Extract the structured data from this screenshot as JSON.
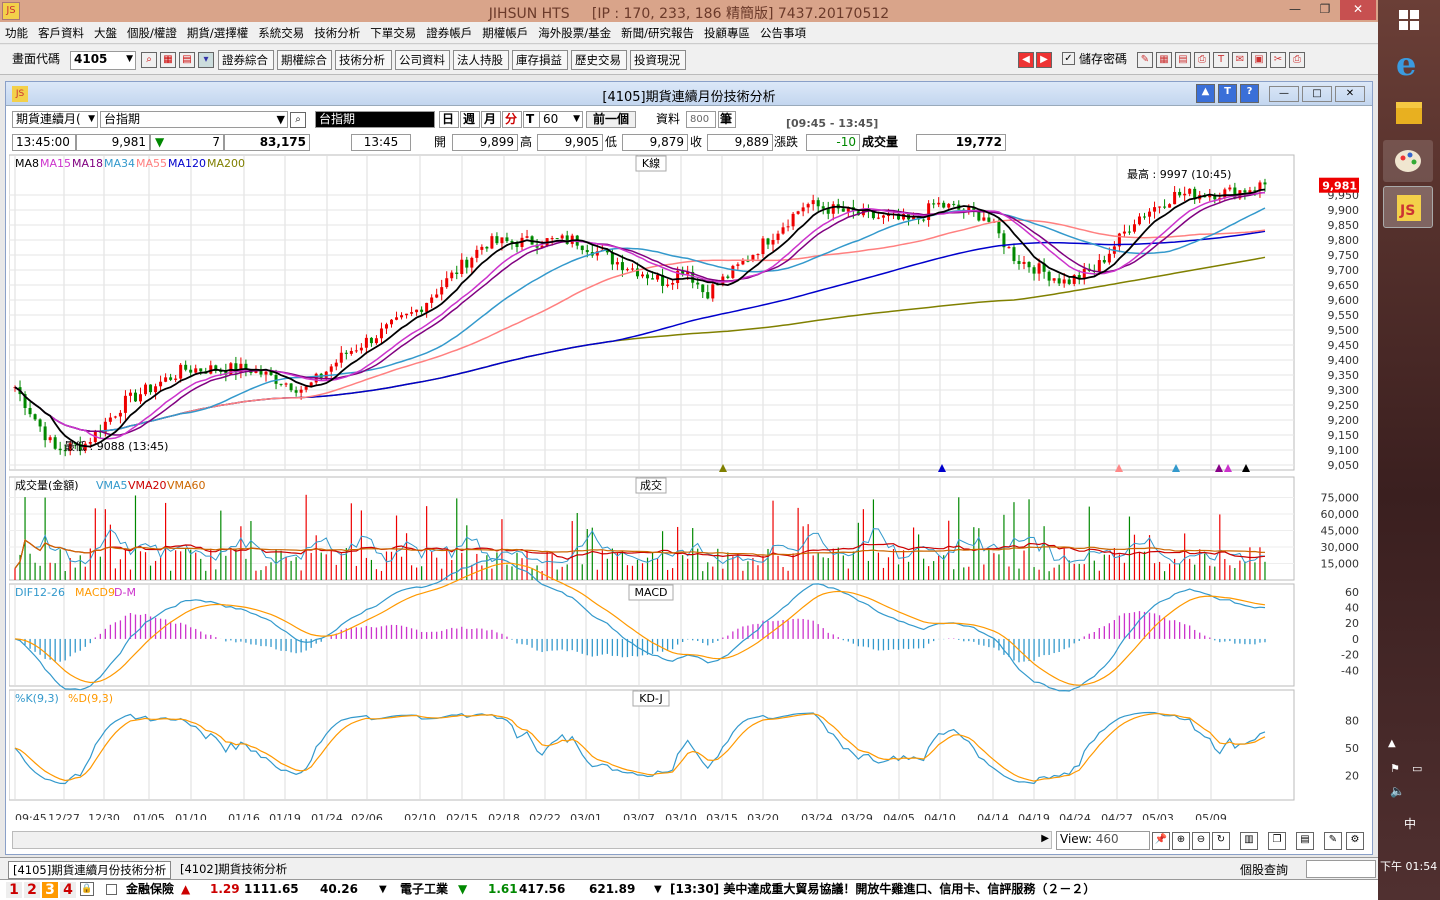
{
  "app": {
    "title": "JIHSUN HTS",
    "ip_info": "[IP : 170, 233, 186 精簡版] 7437.20170512"
  },
  "menu": [
    "功能",
    "客戶資料",
    "大盤",
    "個股/權證",
    "期貨/選擇權",
    "系統交易",
    "技術分析",
    "下單交易",
    "證券帳戶",
    "期權帳戶",
    "海外股票/基金",
    "新聞/研究報告",
    "投顧專區",
    "公告事項"
  ],
  "toolbar": {
    "code_label": "畫面代碼",
    "code_value": "4105",
    "buttons": [
      "證券綜合",
      "期權綜合",
      "技術分析",
      "公司資料",
      "法人持股",
      "庫存損益",
      "歷史交易",
      "投資現況"
    ],
    "save_pw": "儲存密碼"
  },
  "window": {
    "title": "[4105]期貨連續月份技術分析"
  },
  "controls": {
    "type_select": "期貨連續月(",
    "symbol": "台指期",
    "symbol_display": "台指期",
    "periods": [
      "日",
      "週",
      "月",
      "分",
      "T"
    ],
    "interval": "60",
    "prev_btn": "前一個",
    "data_label": "資料",
    "data_count": "800",
    "data_unit": "筆",
    "time_range": "[09:45 - 13:45]"
  },
  "quote": {
    "time": "13:45:00",
    "price": "9,981",
    "change": "7",
    "volume_total": "83,175",
    "bar_time": "13:45",
    "open_label": "開",
    "open": "9,899",
    "high_label": "高",
    "high": "9,905",
    "low_label": "低",
    "low": "9,879",
    "close_label": "收",
    "close": "9,889",
    "chg_label": "漲跌",
    "chg": "-10",
    "vol_label": "成交量",
    "vol": "19,772"
  },
  "kline": {
    "title": "K線",
    "legend": [
      "MA8",
      "MA15",
      "MA18",
      "MA34",
      "MA55",
      "MA120",
      "MA200"
    ],
    "legend_colors": [
      "#000000",
      "#cc33cc",
      "#800080",
      "#3399cc",
      "#ff8080",
      "#0000cc",
      "#808000"
    ],
    "high_note": "最高 : 9997 (10:45)",
    "low_note": "最低 : 9088 (13:45)",
    "price_tag": "9,981",
    "ticks": [
      "9,950",
      "9,900",
      "9,850",
      "9,800",
      "9,750",
      "9,700",
      "9,650",
      "9,600",
      "9,550",
      "9,500",
      "9,450",
      "9,400",
      "9,350",
      "9,300",
      "9,250",
      "9,200",
      "9,150",
      "9,100",
      "9,050"
    ]
  },
  "volume": {
    "title": "成交",
    "legend": [
      "成交量(金額)",
      "VMA5",
      "VMA20",
      "VMA60"
    ],
    "legend_colors": [
      "#000000",
      "#3399cc",
      "#cc0000",
      "#cc6600"
    ],
    "ticks": [
      "75,000",
      "60,000",
      "45,000",
      "30,000",
      "15,000"
    ]
  },
  "macd": {
    "title": "MACD",
    "legend": [
      "DIF12-26",
      "MACD9",
      "D-M"
    ],
    "legend_colors": [
      "#3399cc",
      "#ff9900",
      "#cc33cc"
    ],
    "ticks": [
      "60",
      "40",
      "20",
      "0",
      "-20",
      "-40"
    ]
  },
  "kd": {
    "title": "KD-J",
    "legend": [
      "%K(9,3)",
      "%D(9,3)"
    ],
    "legend_colors": [
      "#3399cc",
      "#ff9900"
    ],
    "ticks": [
      "80",
      "50",
      "20"
    ]
  },
  "xaxis": [
    "09:45",
    "12/27",
    "12/30",
    "01/05",
    "01/10",
    "01/16",
    "01/19",
    "01/24",
    "02/06",
    "02/10",
    "02/15",
    "02/18",
    "02/22",
    "03/01",
    "03/07",
    "03/10",
    "03/15",
    "03/20",
    "03/24",
    "03/29",
    "04/05",
    "04/10",
    "04/14",
    "04/19",
    "04/24",
    "04/27",
    "05/03",
    "05/09"
  ],
  "view": {
    "label": "View:",
    "value": "460"
  },
  "tabs": [
    "[4105]期貨連續月份技術分析",
    "[4102]期貨技術分析"
  ],
  "status_right": "個股查詢",
  "ticker": {
    "pages": [
      "1",
      "2",
      "3",
      "4"
    ],
    "item1_name": "金融保險",
    "item1_chg": "1.29",
    "item1_val": "1111.65",
    "item1_amt": "40.26",
    "item2_name": "電子工業",
    "item2_chg": "1.61",
    "item2_val": "417.56",
    "item2_amt": "621.89",
    "news": "[13:30] 美中達成重大貿易協議！開放牛雞進口、信用卡、信評服務（２－２）"
  },
  "clock": {
    "ampm_time": "下午 01:54",
    "ime": "中"
  }
}
